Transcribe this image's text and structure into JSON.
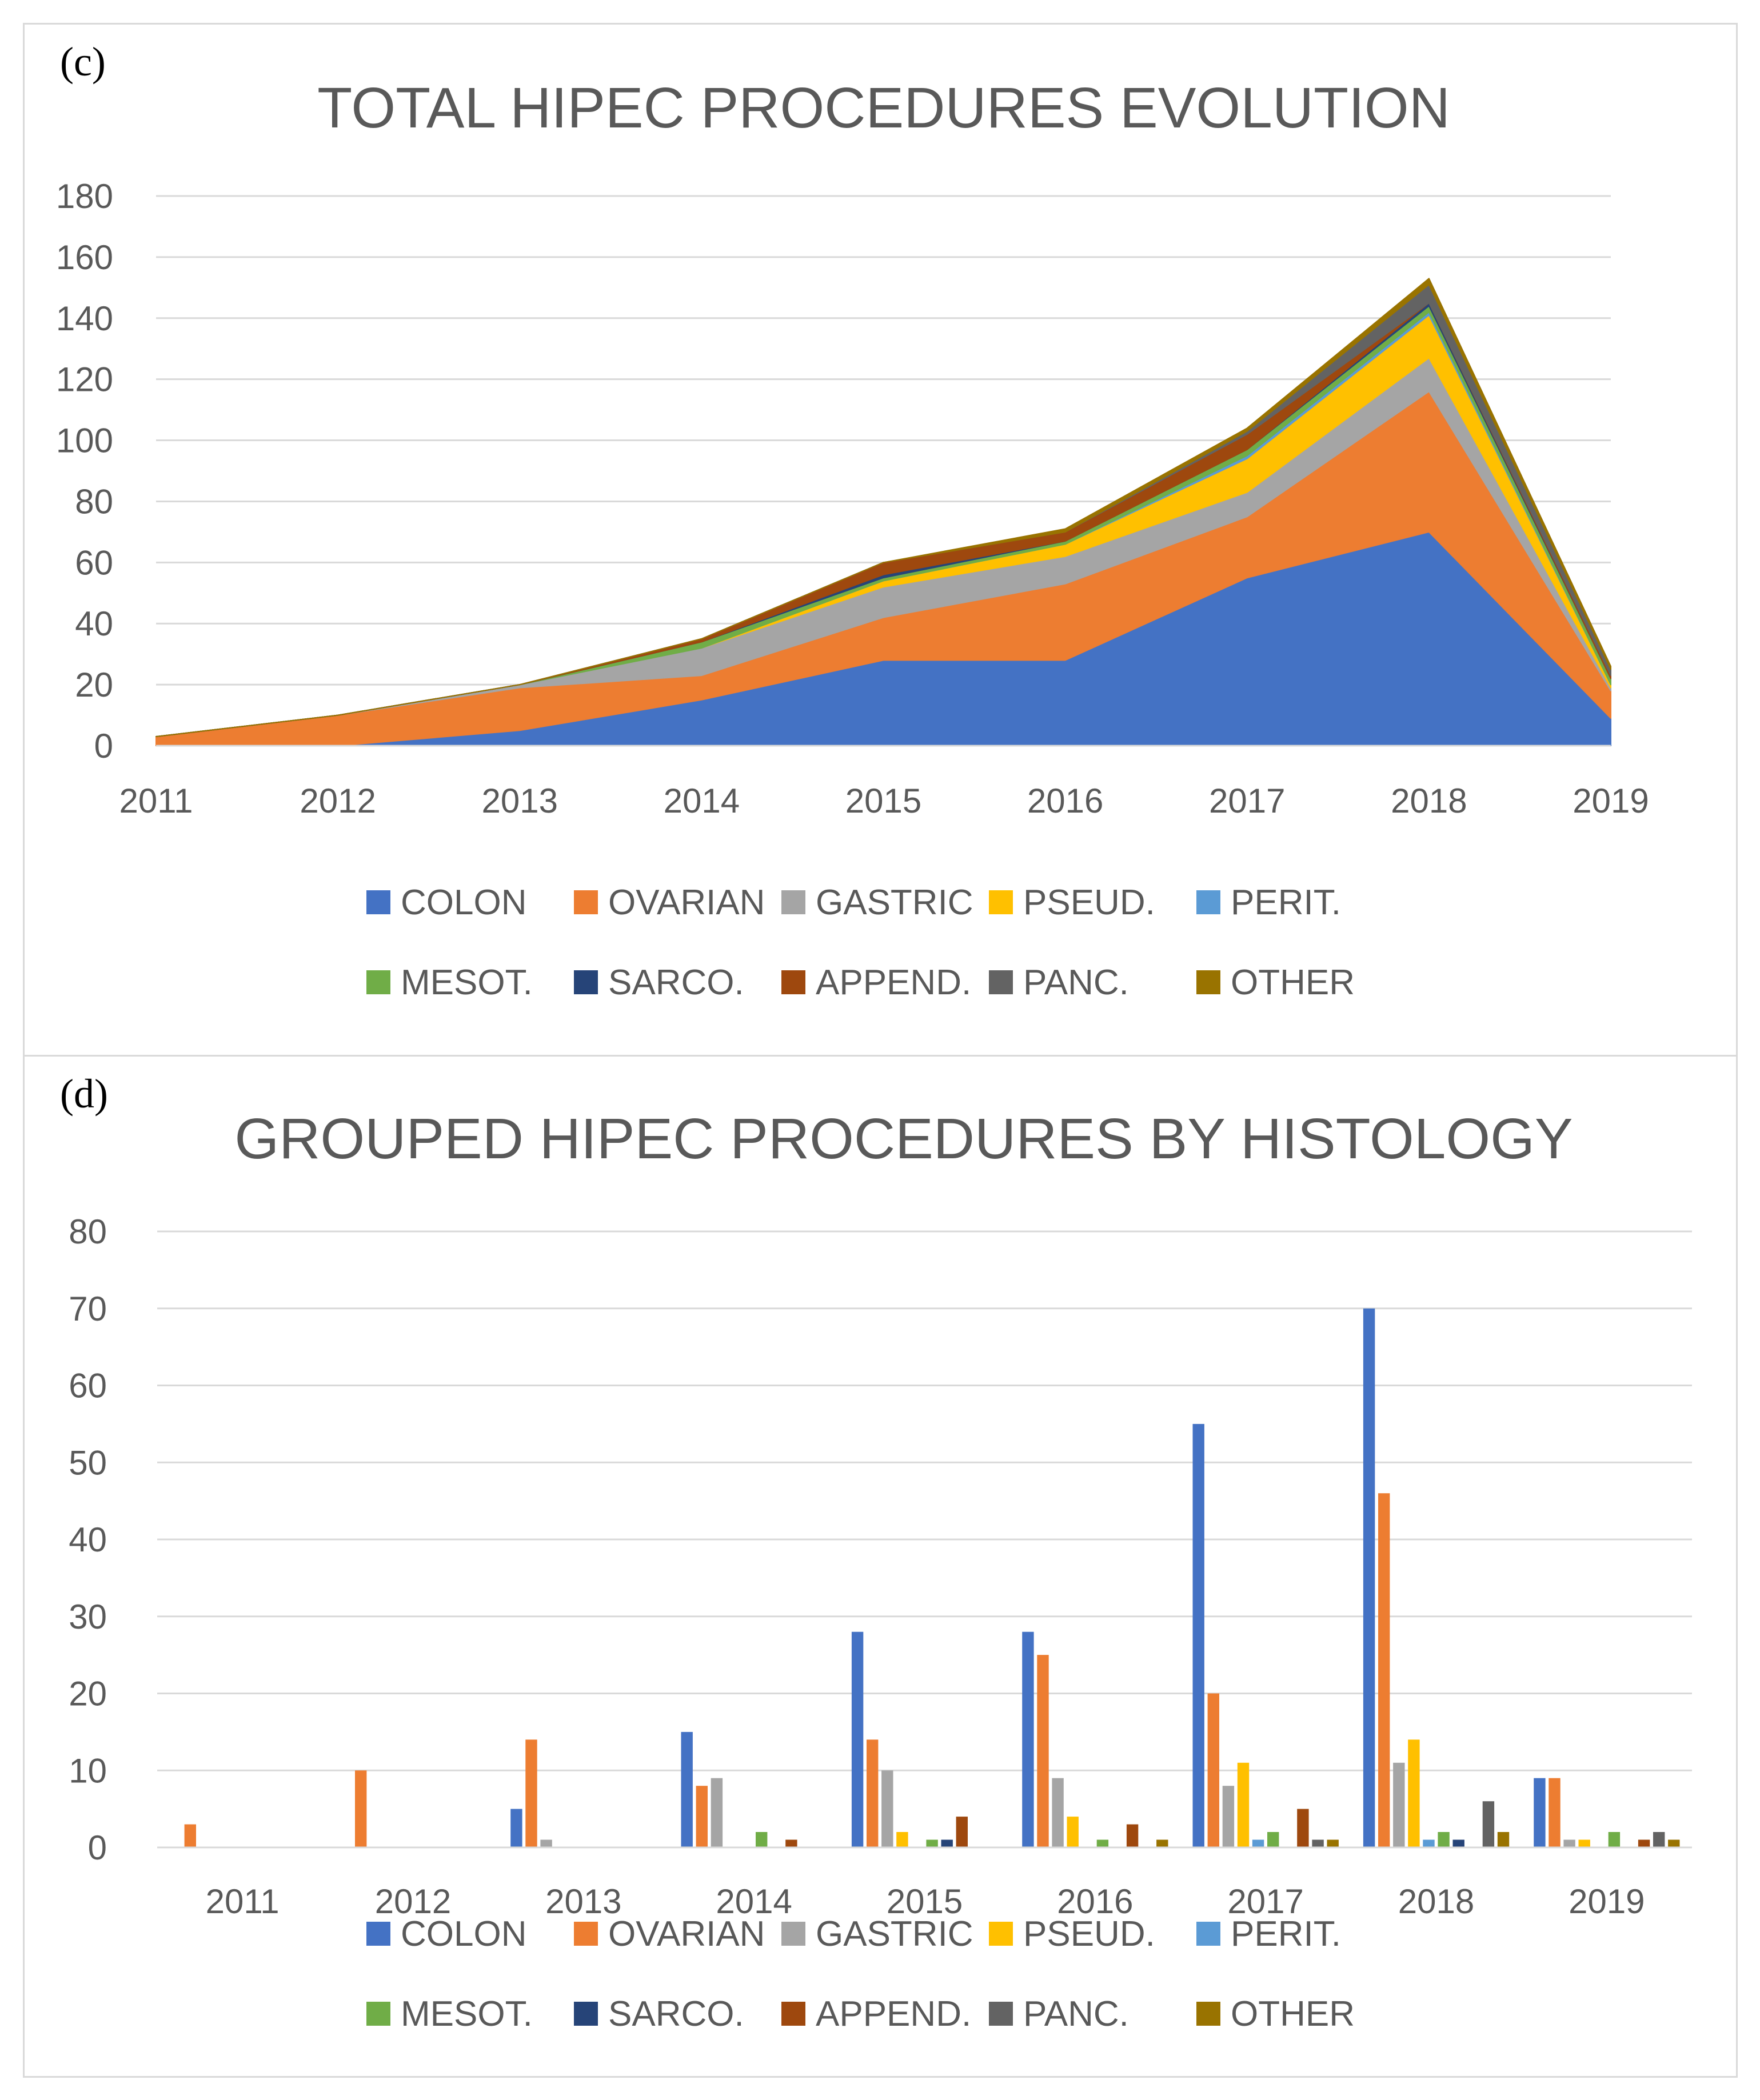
{
  "chart_data": [
    {
      "type": "area",
      "stacked": true,
      "panel_label": "(c)",
      "title": "TOTAL HIPEC PROCEDURES EVOLUTION",
      "x": [
        "2011",
        "2012",
        "2013",
        "2014",
        "2015",
        "2016",
        "2017",
        "2018",
        "2019"
      ],
      "ylim": [
        0,
        180
      ],
      "yticks": [
        0,
        20,
        40,
        60,
        80,
        100,
        120,
        140,
        160,
        180
      ],
      "grid": true,
      "legend_position": "bottom",
      "series": [
        {
          "name": "COLON",
          "color": "#4472C4",
          "values": [
            0,
            0,
            5,
            15,
            28,
            28,
            55,
            70,
            9
          ]
        },
        {
          "name": "OVARIAN",
          "color": "#ED7D31",
          "values": [
            3,
            10,
            14,
            8,
            14,
            25,
            20,
            46,
            9
          ]
        },
        {
          "name": "GASTRIC",
          "color": "#A5A5A5",
          "values": [
            0,
            0,
            1,
            9,
            10,
            9,
            8,
            11,
            1
          ]
        },
        {
          "name": "PSEUD.",
          "color": "#FFC000",
          "values": [
            0,
            0,
            0,
            0,
            2,
            4,
            11,
            14,
            1
          ]
        },
        {
          "name": "PERIT.",
          "color": "#5B9BD5",
          "values": [
            0,
            0,
            0,
            0,
            0,
            0,
            1,
            1,
            0
          ]
        },
        {
          "name": "MESOT.",
          "color": "#70AD47",
          "values": [
            0,
            0,
            0,
            2,
            1,
            1,
            2,
            2,
            2
          ]
        },
        {
          "name": "SARCO.",
          "color": "#264478",
          "values": [
            0,
            0,
            0,
            0,
            1,
            0,
            0,
            1,
            0
          ]
        },
        {
          "name": "APPEND.",
          "color": "#9E480E",
          "values": [
            0,
            0,
            0,
            1,
            4,
            3,
            5,
            0,
            1
          ]
        },
        {
          "name": "PANC.",
          "color": "#636363",
          "values": [
            0,
            0,
            0,
            0,
            0,
            0,
            1,
            6,
            2
          ]
        },
        {
          "name": "OTHER",
          "color": "#997300",
          "values": [
            0,
            0,
            0,
            0,
            0,
            1,
            1,
            2,
            1
          ]
        }
      ]
    },
    {
      "type": "bar",
      "panel_label": "(d)",
      "title": "GROUPED HIPEC PROCEDURES BY HISTOLOGY",
      "categories": [
        "2011",
        "2012",
        "2013",
        "2014",
        "2015",
        "2016",
        "2017",
        "2018",
        "2019"
      ],
      "ylim": [
        0,
        80
      ],
      "yticks": [
        0,
        10,
        20,
        30,
        40,
        50,
        60,
        70,
        80
      ],
      "grid": true,
      "legend_position": "bottom",
      "series": [
        {
          "name": "COLON",
          "color": "#4472C4",
          "values": [
            0,
            0,
            5,
            15,
            28,
            28,
            55,
            70,
            9
          ]
        },
        {
          "name": "OVARIAN",
          "color": "#ED7D31",
          "values": [
            3,
            10,
            14,
            8,
            14,
            25,
            20,
            46,
            9
          ]
        },
        {
          "name": "GASTRIC",
          "color": "#A5A5A5",
          "values": [
            0,
            0,
            1,
            9,
            10,
            9,
            8,
            11,
            1
          ]
        },
        {
          "name": "PSEUD.",
          "color": "#FFC000",
          "values": [
            0,
            0,
            0,
            0,
            2,
            4,
            11,
            14,
            1
          ]
        },
        {
          "name": "PERIT.",
          "color": "#5B9BD5",
          "values": [
            0,
            0,
            0,
            0,
            0,
            0,
            1,
            1,
            0
          ]
        },
        {
          "name": "MESOT.",
          "color": "#70AD47",
          "values": [
            0,
            0,
            0,
            2,
            1,
            1,
            2,
            2,
            2
          ]
        },
        {
          "name": "SARCO.",
          "color": "#264478",
          "values": [
            0,
            0,
            0,
            0,
            1,
            0,
            0,
            1,
            0
          ]
        },
        {
          "name": "APPEND.",
          "color": "#9E480E",
          "values": [
            0,
            0,
            0,
            1,
            4,
            3,
            5,
            0,
            1
          ]
        },
        {
          "name": "PANC.",
          "color": "#636363",
          "values": [
            0,
            0,
            0,
            0,
            0,
            0,
            1,
            6,
            2
          ]
        },
        {
          "name": "OTHER",
          "color": "#997300",
          "values": [
            0,
            0,
            0,
            0,
            0,
            1,
            1,
            2,
            1
          ]
        }
      ]
    }
  ]
}
